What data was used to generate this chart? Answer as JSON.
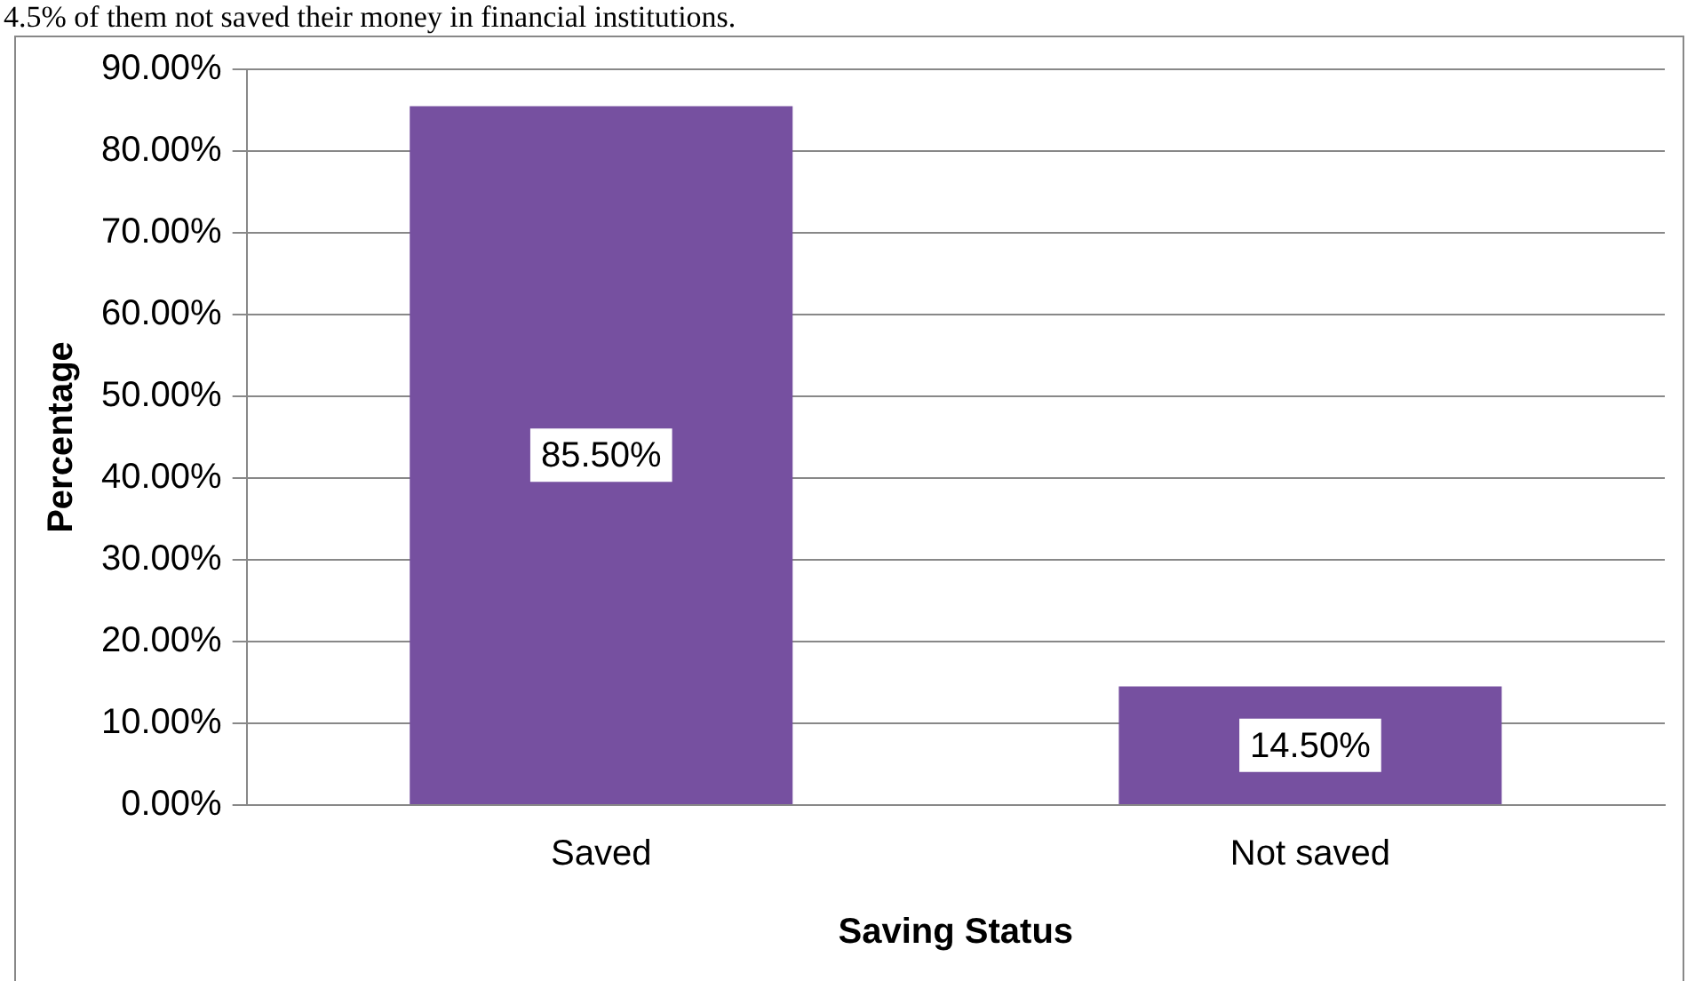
{
  "chart_data": {
    "type": "bar",
    "xlabel": "Saving Status",
    "ylabel": "Percentage",
    "annotations": [
      "4.5% of them not saved their money in financial institutions."
    ],
    "categories": [
      "Saved",
      "Not saved"
    ],
    "values": [
      85.5,
      14.5
    ],
    "value_labels": [
      "85.50%",
      "14.50%"
    ],
    "color": "#7650a0",
    "ylim": [
      0,
      90
    ],
    "yticks": [
      {
        "value": 0,
        "label": "0.00%"
      },
      {
        "value": 10,
        "label": "10.00%"
      },
      {
        "value": 20,
        "label": "20.00%"
      },
      {
        "value": 30,
        "label": "30.00%"
      },
      {
        "value": 40,
        "label": "40.00%"
      },
      {
        "value": 50,
        "label": "50.00%"
      },
      {
        "value": 60,
        "label": "60.00%"
      },
      {
        "value": 70,
        "label": "70.00%"
      },
      {
        "value": 80,
        "label": "80.00%"
      },
      {
        "value": 90,
        "label": "90.00%"
      }
    ],
    "grid": "y",
    "legend": false
  }
}
